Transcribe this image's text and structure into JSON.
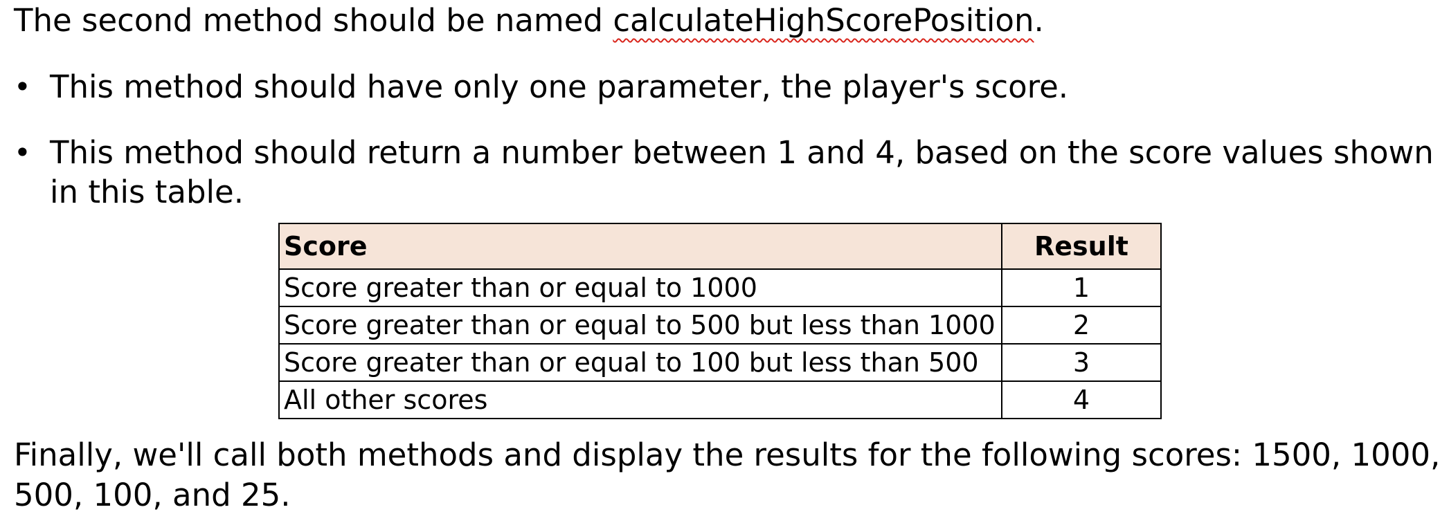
{
  "intro": {
    "before": "The second method should be named ",
    "method_name": "calculateHighScorePosition",
    "after": "."
  },
  "bullets": [
    {
      "lines": [
        "This method should have only one parameter, the player's score."
      ]
    },
    {
      "lines": [
        "This method should return a number between 1 and 4, based on the score values shown",
        "in this table."
      ]
    }
  ],
  "bullet_symbol": "•",
  "table": {
    "headers": [
      "Score",
      "Result"
    ],
    "rows": [
      [
        "Score greater than or equal to 1000",
        "1"
      ],
      [
        "Score greater than or equal to 500 but less than 1000",
        "2"
      ],
      [
        "Score greater than or equal to 100 but less than 500",
        "3"
      ],
      [
        "All other scores",
        "4"
      ]
    ],
    "header_bg": "#f6e4d8"
  },
  "closing": {
    "lines": [
      "Finally, we'll call both methods and display the results for the following scores: 1500, 1000,",
      "500, 100, and 25."
    ]
  },
  "colors": {
    "text": "#000000",
    "spellcheck_underline": "#d9251c"
  }
}
